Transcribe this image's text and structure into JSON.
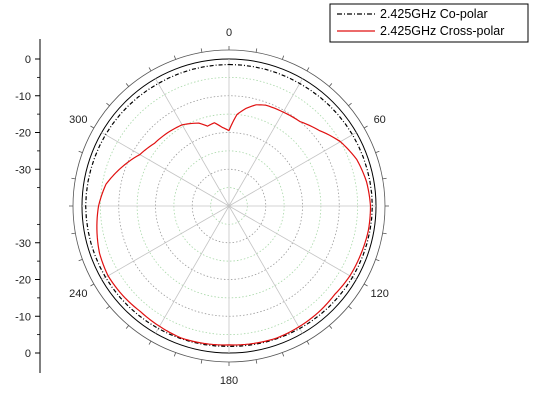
{
  "chart_data": {
    "type": "polar",
    "angle_ticks": [
      "0",
      "60",
      "120",
      "180",
      "240",
      "300"
    ],
    "radial_axis": {
      "ticks_upper": [
        "0",
        "-10",
        "-20",
        "-30"
      ],
      "ticks_lower": [
        "-30",
        "-20",
        "-10",
        "0"
      ],
      "range_db": [
        -40,
        0
      ],
      "grid": true
    },
    "legend": {
      "placement": "top-right",
      "entries": [
        "2.425GHz Co-polar",
        "2.425GHz Cross-polar"
      ]
    },
    "series": [
      {
        "name": "2.425GHz Co-polar",
        "color": "#000000",
        "line": "dash-dot",
        "angle_deg": [
          0,
          30,
          60,
          90,
          120,
          150,
          180,
          210,
          240,
          270,
          300,
          330,
          360
        ],
        "gain_db": [
          -1.5,
          -1.5,
          -1.2,
          -1.0,
          -1.2,
          -1.5,
          -1.8,
          -1.5,
          -1.2,
          -1.0,
          -1.2,
          -1.5,
          -1.5
        ]
      },
      {
        "name": "2.425GHz Cross-polar",
        "color": "#e01010",
        "line": "solid",
        "angle_deg": [
          0,
          5,
          10,
          15,
          20,
          30,
          40,
          50,
          60,
          70,
          80,
          90,
          100,
          110,
          120,
          130,
          140,
          150,
          160,
          170,
          180,
          190,
          200,
          210,
          220,
          230,
          240,
          250,
          260,
          270,
          280,
          290,
          300,
          310,
          320,
          330,
          340,
          345,
          350,
          355,
          360
        ],
        "gain_db": [
          -19.5,
          -15.0,
          -13.0,
          -11.5,
          -10.8,
          -10.5,
          -10.0,
          -8.0,
          -5.0,
          -3.0,
          -2.0,
          -1.5,
          -1.5,
          -1.8,
          -2.0,
          -2.5,
          -2.2,
          -2.0,
          -1.8,
          -2.0,
          -2.2,
          -2.0,
          -1.8,
          -2.2,
          -2.5,
          -2.2,
          -2.0,
          -2.5,
          -3.5,
          -4.5,
          -6.0,
          -9.0,
          -12.0,
          -13.5,
          -14.0,
          -14.5,
          -16.0,
          -17.5,
          -17.0,
          -18.5,
          -19.5
        ]
      }
    ]
  }
}
